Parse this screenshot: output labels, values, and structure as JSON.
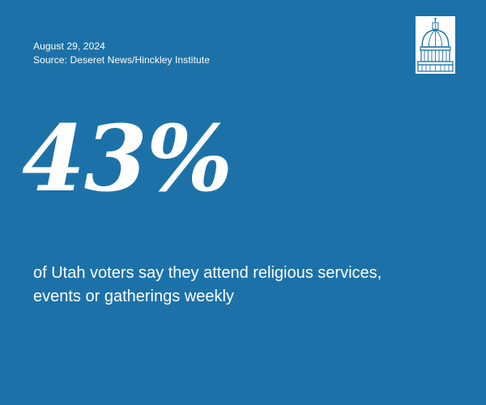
{
  "meta": {
    "date": "August 29, 2024",
    "source": "Source: Deseret News/Hinckley Institute"
  },
  "logo": {
    "icon": "capitol-dome-icon"
  },
  "stat": {
    "value": "43%",
    "description_line1": "of Utah voters say they attend religious services,",
    "description_line2": "events or gatherings weekly"
  },
  "colors": {
    "background": "#1c72a8",
    "text": "#ffffff"
  }
}
